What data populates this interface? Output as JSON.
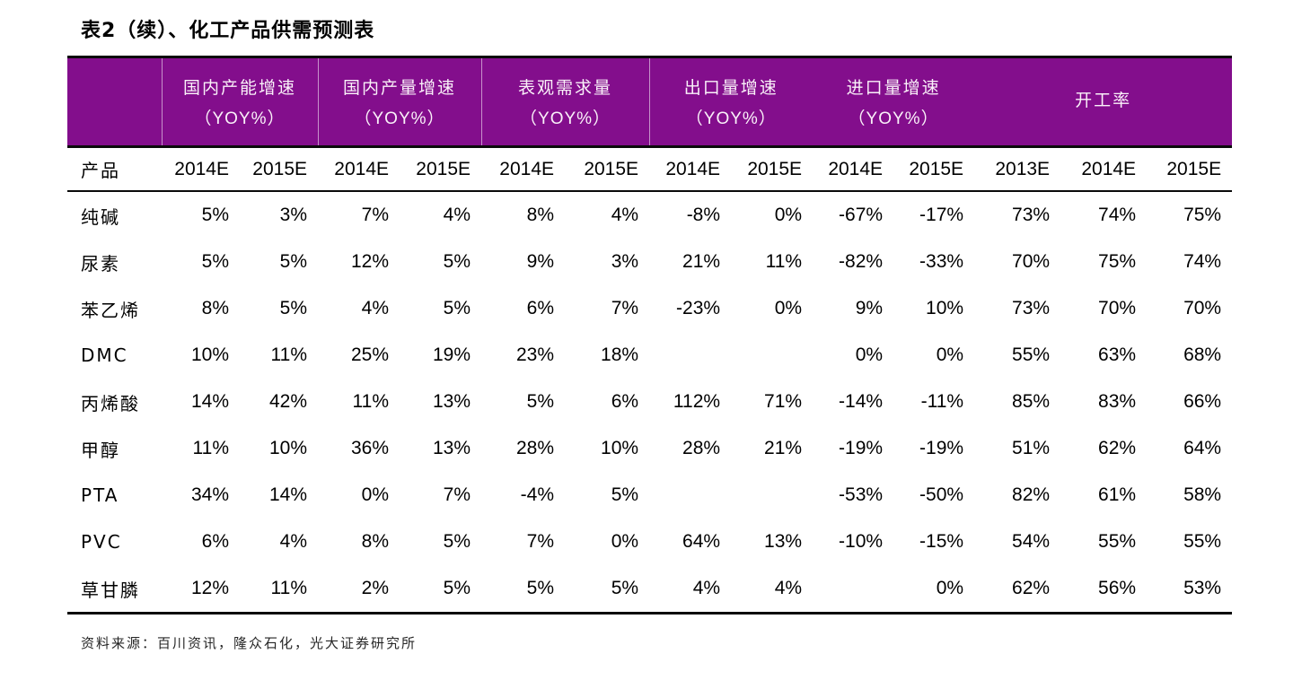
{
  "page": {
    "title": "表2（续）、化工产品供需预测表",
    "source": "资料来源：百川资讯，隆众石化，光大证券研究所"
  },
  "colors": {
    "header_bg": "#830E8C",
    "header_text": "#FAF1F9",
    "rule_black": "#0A0A0A",
    "header_separator": "rgba(255,255,255,0.55)"
  },
  "table": {
    "product_header": "产品",
    "groups": [
      {
        "name": "国内产能增速",
        "unit": "（YOY%）",
        "span": 2,
        "separator_left": true
      },
      {
        "name": "国内产量增速",
        "unit": "（YOY%）",
        "span": 2,
        "separator_left": true
      },
      {
        "name": "表观需求量",
        "unit": "（YOY%）",
        "span": 2,
        "separator_left": true
      },
      {
        "name": "出口量增速",
        "unit": "（YOY%）",
        "span": 2,
        "separator_left": true
      },
      {
        "name": "进口量增速",
        "unit": "（YOY%）",
        "span": 2,
        "separator_left": false
      },
      {
        "name": "开工率",
        "unit": "",
        "span": 3,
        "separator_left": false
      }
    ],
    "year_headers": [
      "2014E",
      "2015E",
      "2014E",
      "2015E",
      "2014E",
      "2015E",
      "2014E",
      "2015E",
      "2014E",
      "2015E",
      "2013E",
      "2014E",
      "2015E"
    ],
    "rows": [
      {
        "product": "纯碱",
        "values": [
          "5%",
          "3%",
          "7%",
          "4%",
          "8%",
          "4%",
          "-8%",
          "0%",
          "-67%",
          "-17%",
          "73%",
          "74%",
          "75%"
        ]
      },
      {
        "product": "尿素",
        "values": [
          "5%",
          "5%",
          "12%",
          "5%",
          "9%",
          "3%",
          "21%",
          "11%",
          "-82%",
          "-33%",
          "70%",
          "75%",
          "74%"
        ]
      },
      {
        "product": "苯乙烯",
        "values": [
          "8%",
          "5%",
          "4%",
          "5%",
          "6%",
          "7%",
          "-23%",
          "0%",
          "9%",
          "10%",
          "73%",
          "70%",
          "70%"
        ]
      },
      {
        "product": "DMC",
        "values": [
          "10%",
          "11%",
          "25%",
          "19%",
          "23%",
          "18%",
          "",
          "",
          "0%",
          "0%",
          "55%",
          "63%",
          "68%"
        ]
      },
      {
        "product": "丙烯酸",
        "values": [
          "14%",
          "42%",
          "11%",
          "13%",
          "5%",
          "6%",
          "112%",
          "71%",
          "-14%",
          "-11%",
          "85%",
          "83%",
          "66%"
        ]
      },
      {
        "product": "甲醇",
        "values": [
          "11%",
          "10%",
          "36%",
          "13%",
          "28%",
          "10%",
          "28%",
          "21%",
          "-19%",
          "-19%",
          "51%",
          "62%",
          "64%"
        ]
      },
      {
        "product": "PTA",
        "values": [
          "34%",
          "14%",
          "0%",
          "7%",
          "-4%",
          "5%",
          "",
          "",
          "-53%",
          "-50%",
          "82%",
          "61%",
          "58%"
        ]
      },
      {
        "product": "PVC",
        "values": [
          "6%",
          "4%",
          "8%",
          "5%",
          "7%",
          "0%",
          "64%",
          "13%",
          "-10%",
          "-15%",
          "54%",
          "55%",
          "55%"
        ]
      },
      {
        "product": "草甘膦",
        "values": [
          "12%",
          "11%",
          "2%",
          "5%",
          "5%",
          "5%",
          "4%",
          "4%",
          "",
          "0%",
          "62%",
          "56%",
          "53%"
        ]
      }
    ]
  }
}
